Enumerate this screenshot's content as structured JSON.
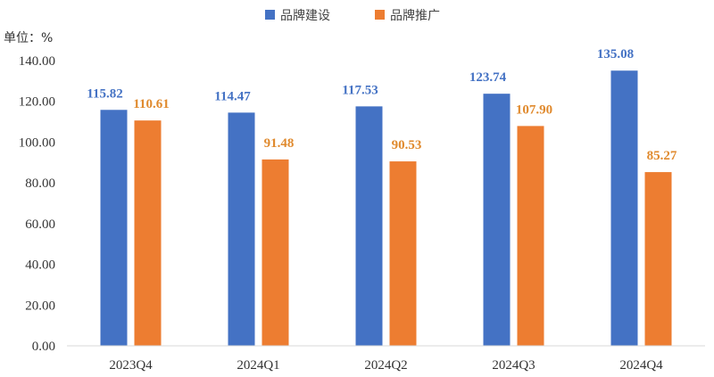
{
  "chart_data": {
    "type": "bar",
    "unit_label": "单位：%",
    "categories": [
      "2023Q4",
      "2024Q1",
      "2024Q2",
      "2024Q3",
      "2024Q4"
    ],
    "series": [
      {
        "name": "品牌建设",
        "color": "#4472C4",
        "label_color": "#4472C4",
        "values": [
          115.82,
          114.47,
          117.53,
          123.74,
          135.08
        ],
        "labels": [
          "115.82",
          "114.47",
          "117.53",
          "123.74",
          "135.08"
        ]
      },
      {
        "name": "品牌推广",
        "color": "#ED7D31",
        "label_color": "#E08A2E",
        "values": [
          110.61,
          91.48,
          90.53,
          107.9,
          85.27
        ],
        "labels": [
          "110.61",
          "91.48",
          "90.53",
          "107.90",
          "85.27"
        ]
      }
    ],
    "y_ticks": [
      "0.00",
      "20.00",
      "40.00",
      "60.00",
      "80.00",
      "100.00",
      "120.00",
      "140.00"
    ],
    "ylim": [
      0,
      140
    ],
    "grid": false,
    "legend_position": "top-center"
  }
}
